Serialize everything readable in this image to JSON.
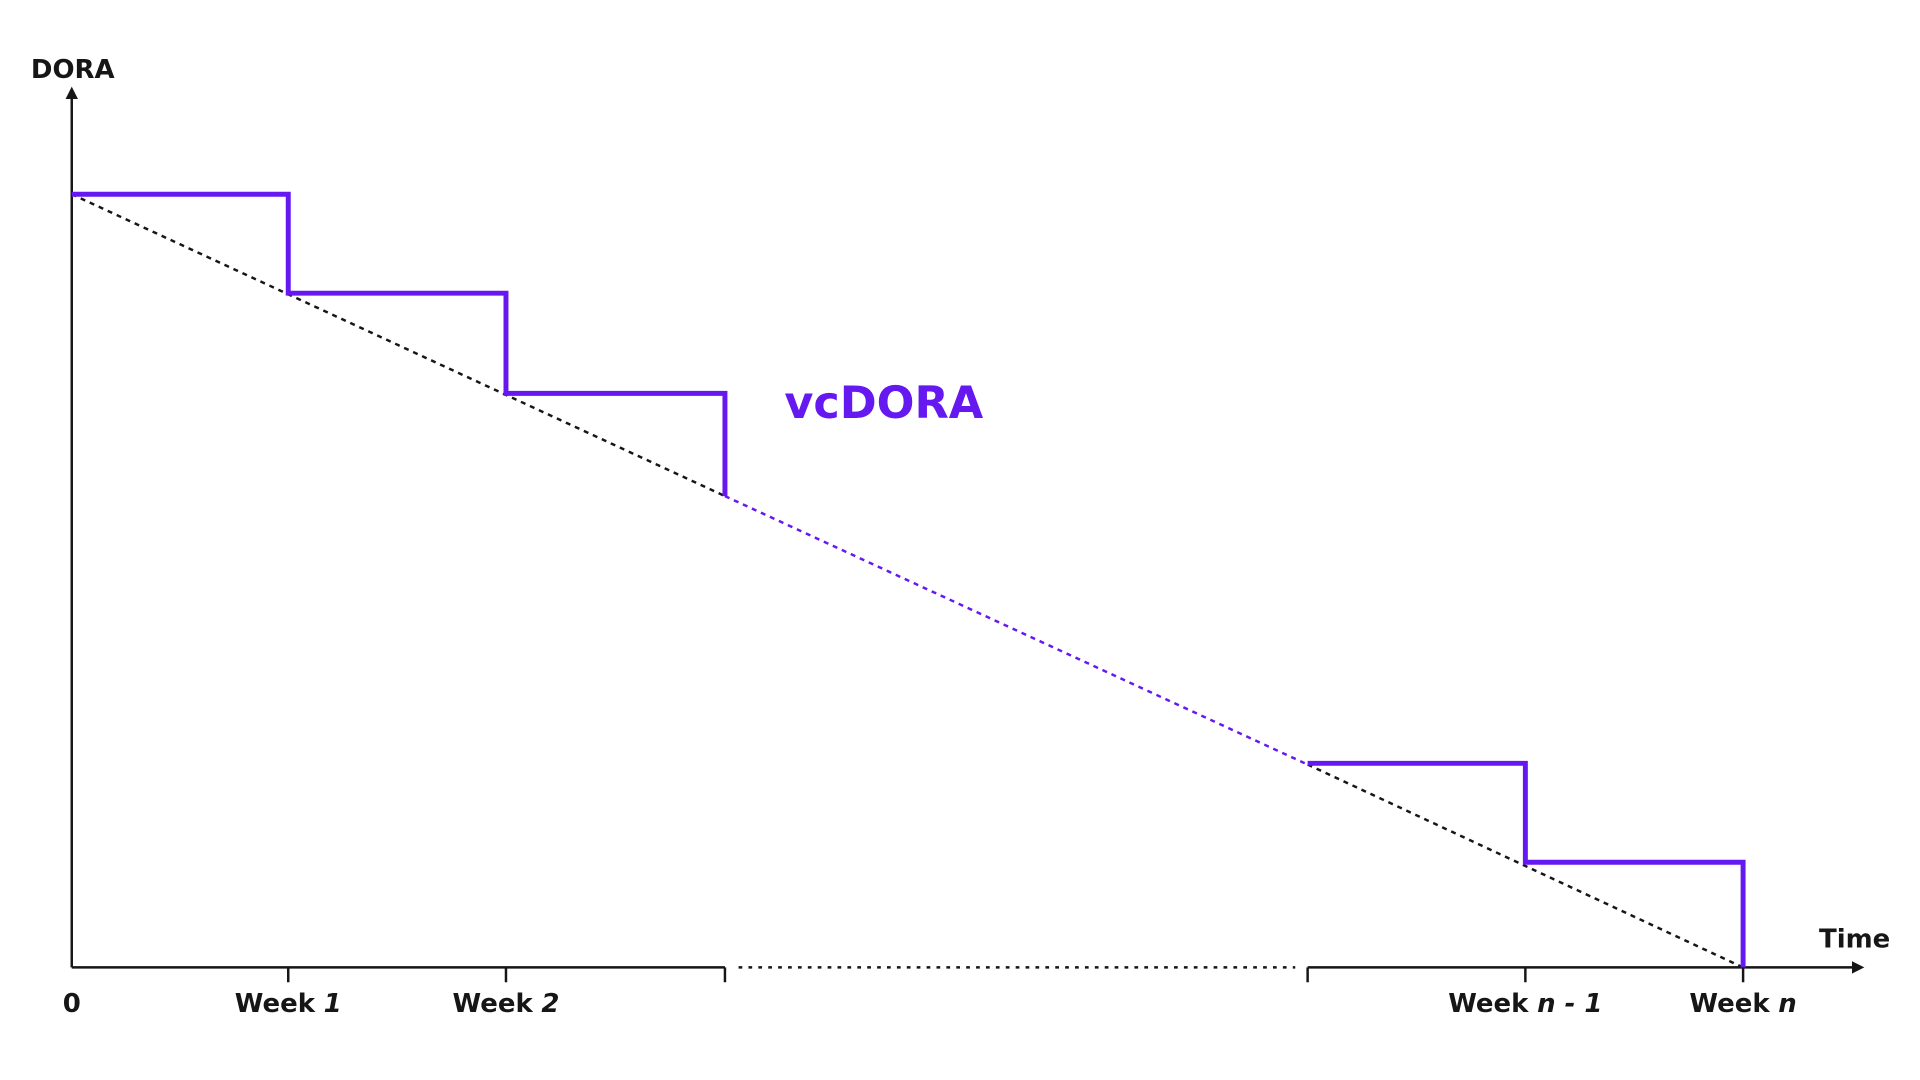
{
  "y_axis": {
    "label": "DORA"
  },
  "x_axis": {
    "label": "Time",
    "ticks": [
      {
        "word": "0"
      },
      {
        "word": "Week",
        "index": "1"
      },
      {
        "word": "Week",
        "index": "2"
      },
      {
        "word": "Week",
        "index": "n - 1"
      },
      {
        "word": "Week",
        "index": "n"
      }
    ]
  },
  "series_label": "vcDORA"
}
